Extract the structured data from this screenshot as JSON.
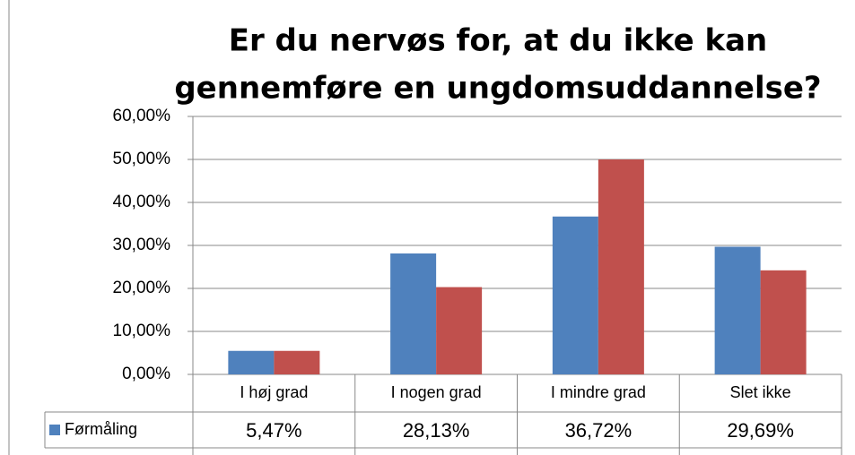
{
  "chart_data": {
    "type": "bar",
    "title": [
      "Er du nervøs for, at du ikke kan",
      "gennemføre en ungdomsuddannelse?"
    ],
    "categories": [
      "I høj grad",
      "I nogen grad",
      "I mindre grad",
      "Slet ikke"
    ],
    "series": [
      {
        "name": "Førmåling",
        "color": "#4f81bd",
        "values": [
          5.47,
          28.13,
          36.72,
          29.69
        ],
        "value_labels": [
          "5,47%",
          "28,13%",
          "36,72%",
          "29,69%"
        ]
      },
      {
        "color": "#c0504d",
        "values": [
          5.47,
          20.3,
          50.0,
          24.2
        ]
      }
    ],
    "ylim": [
      0,
      60
    ],
    "yticks": [
      {
        "value": 0,
        "label": "0,00%"
      },
      {
        "value": 10,
        "label": "10,00%"
      },
      {
        "value": 20,
        "label": "20,00%"
      },
      {
        "value": 30,
        "label": "30,00%"
      },
      {
        "value": 40,
        "label": "40,00%"
      },
      {
        "value": 50,
        "label": "50,00%"
      },
      {
        "value": 60,
        "label": "60,00%"
      }
    ],
    "grid": true
  }
}
